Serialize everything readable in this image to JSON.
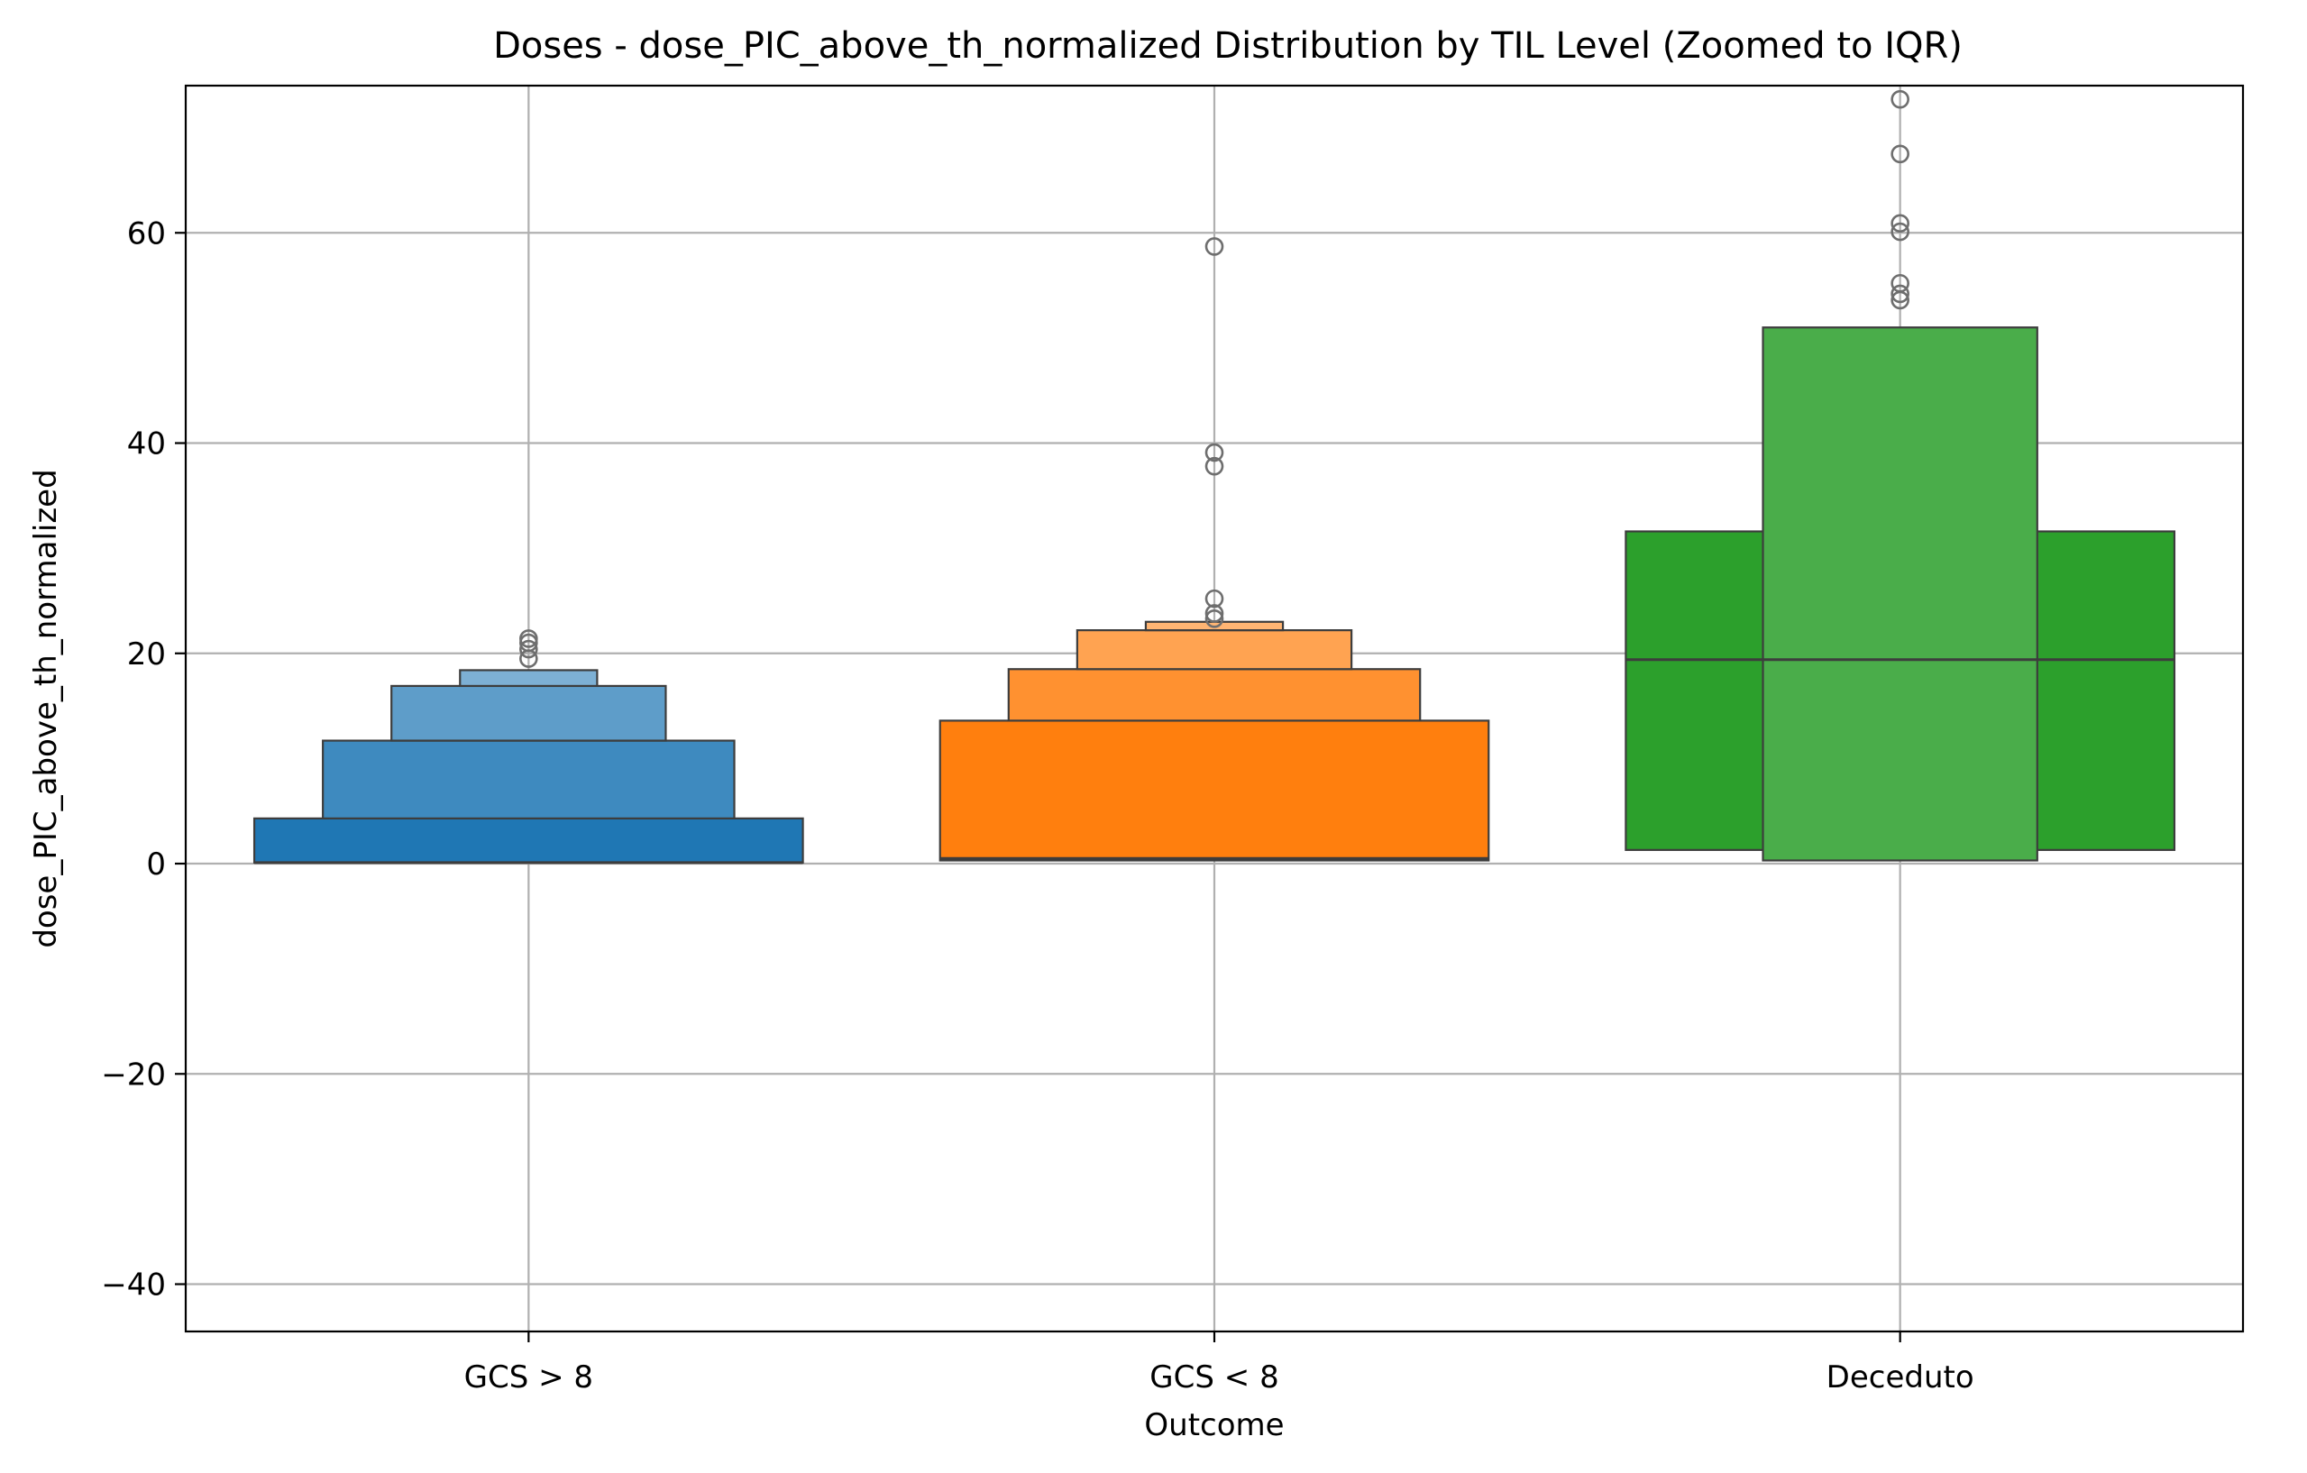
{
  "chart_data": {
    "type": "boxen",
    "title": "Doses - dose_PIC_above_th_normalized Distribution by TIL Level (Zoomed to IQR)",
    "xlabel": "Outcome",
    "ylabel": "dose_PIC_above_th_normalized",
    "ylim": [
      -44.5,
      74
    ],
    "yticks": [
      -40,
      -20,
      0,
      20,
      40,
      60
    ],
    "ytick_labels": [
      "−40",
      "−20",
      "0",
      "20",
      "40",
      "60"
    ],
    "grid": true,
    "legend": "none",
    "categories": [
      "GCS > 8",
      "GCS < 8",
      "Deceduto"
    ],
    "series": [
      {
        "color": "#1f77b4",
        "median": 0.1,
        "boxes": [
          {
            "low": 0.1,
            "high": 4.3
          },
          {
            "low": 4.3,
            "high": 11.7
          },
          {
            "low": 11.7,
            "high": 16.9
          },
          {
            "low": 16.9,
            "high": 18.4
          }
        ],
        "outliers": [
          19.5,
          20.4,
          21.0,
          21.4
        ]
      },
      {
        "color": "#ff7f0e",
        "median": 0.5,
        "boxes": [
          {
            "low": 0.3,
            "high": 13.6
          },
          {
            "low": 13.6,
            "high": 18.5
          },
          {
            "low": 18.5,
            "high": 22.2
          },
          {
            "low": 22.2,
            "high": 23.0
          }
        ],
        "outliers": [
          23.3,
          23.8,
          25.2,
          37.8,
          39.1,
          58.7
        ]
      },
      {
        "color": "#2ca02c",
        "median": 19.4,
        "boxes": [
          {
            "low": 1.3,
            "high": 31.6
          },
          {
            "low": 0.3,
            "high": 51.0
          }
        ],
        "outliers": [
          53.6,
          54.2,
          55.2,
          60.1,
          60.9,
          67.5,
          72.7
        ]
      }
    ]
  }
}
